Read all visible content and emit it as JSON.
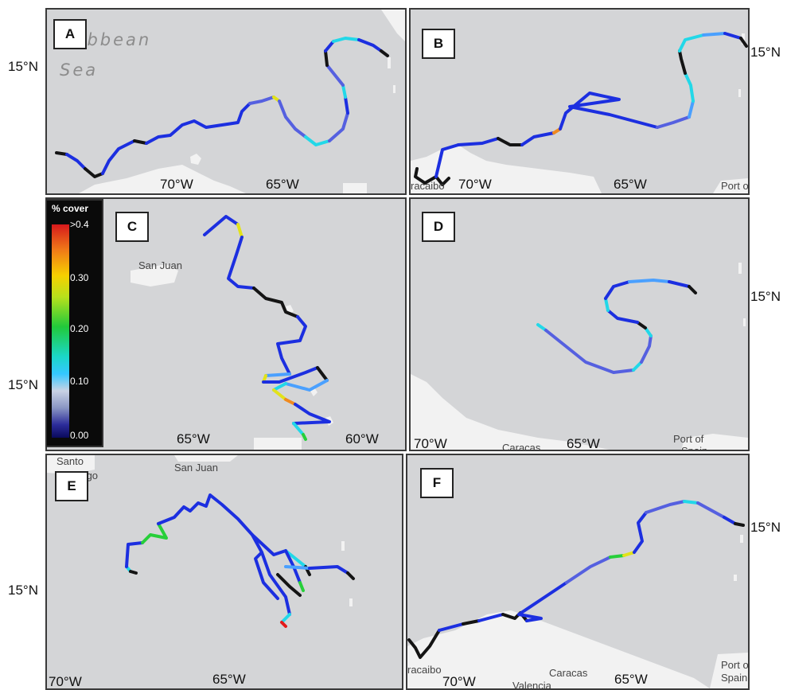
{
  "colors": {
    "land": "#f2f2f2",
    "ocean": "#d4d5d7",
    "island": "#eeeeee",
    "cover_none": "#141414",
    "cover_low": "#1c2fe0",
    "cover_mid_low": "#5560e0",
    "cover_light": "#4aa0ff",
    "cover_cyan": "#22d8e8",
    "cover_green": "#27cf3a",
    "cover_yellow": "#e2e21a",
    "cover_orange": "#f08a20",
    "cover_red": "#e41b1b"
  },
  "lat_labels": {
    "row1_left": "15°N",
    "row1_right": "15°N",
    "row2_left": "15°N",
    "row2_right": "15°N",
    "row3_left": "15°N",
    "row3_right": "15°N"
  },
  "legend": {
    "title": "% cover",
    "ticks": [
      ">0.4",
      "0.30",
      "0.20",
      "0.10",
      "0.00"
    ]
  },
  "panels": {
    "A": {
      "label": "A",
      "lon_ticks": [
        "70°W",
        "65°W"
      ],
      "sea_label_1": "ribbean",
      "sea_label_2": "Sea"
    },
    "B": {
      "label": "B",
      "lon_ticks": [
        "70°W",
        "65°W"
      ],
      "places": [
        "racaibo",
        "Port o"
      ]
    },
    "C": {
      "label": "C",
      "lon_ticks": [
        "65°W",
        "60°W"
      ],
      "places": [
        "San Juan"
      ]
    },
    "D": {
      "label": "D",
      "lon_ticks": [
        "70°W",
        "65°W"
      ],
      "places": [
        "Caracas",
        "Port of",
        "Spain"
      ]
    },
    "E": {
      "label": "E",
      "lon_ticks": [
        "70°W",
        "65°W"
      ],
      "places": [
        "Santo",
        "Domingo",
        "San Juan"
      ]
    },
    "F": {
      "label": "F",
      "lon_ticks": [
        "70°W",
        "65°W"
      ],
      "places": [
        "racaibo",
        "Caracas",
        "Valencia",
        "Port o",
        "Spain"
      ]
    }
  }
}
